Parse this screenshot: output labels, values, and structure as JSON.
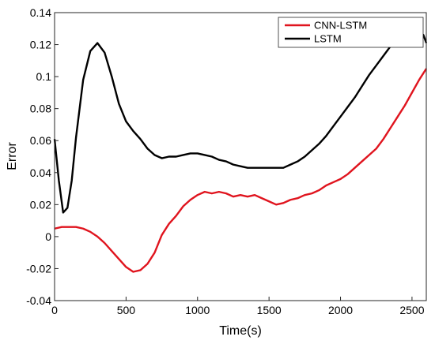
{
  "chart_data": {
    "type": "line",
    "title": "",
    "xlabel": "Time(s)",
    "ylabel": "Error",
    "xlim": [
      0,
      2600
    ],
    "ylim": [
      -0.04,
      0.14
    ],
    "xticks": [
      0,
      500,
      1000,
      1500,
      2000,
      2500
    ],
    "xtick_labels": [
      "0",
      "500",
      "1000",
      "1500",
      "2000",
      "2500"
    ],
    "yticks": [
      -0.04,
      -0.02,
      0,
      0.02,
      0.04,
      0.06,
      0.08,
      0.1,
      0.12,
      0.14
    ],
    "ytick_labels": [
      "-0.04",
      "-0.02",
      "0",
      "0.02",
      "0.04",
      "0.06",
      "0.08",
      "0.1",
      "0.12",
      "0.14"
    ],
    "grid": false,
    "legend_position": "top-right",
    "series": [
      {
        "name": "CNN-LSTM",
        "color": "#e0141e",
        "x": [
          0,
          50,
          100,
          150,
          200,
          250,
          300,
          350,
          400,
          450,
          500,
          550,
          600,
          650,
          700,
          750,
          800,
          850,
          900,
          950,
          1000,
          1050,
          1100,
          1150,
          1200,
          1250,
          1300,
          1350,
          1400,
          1450,
          1500,
          1550,
          1600,
          1650,
          1700,
          1750,
          1800,
          1850,
          1900,
          1950,
          2000,
          2050,
          2100,
          2150,
          2200,
          2250,
          2300,
          2350,
          2400,
          2450,
          2500,
          2550,
          2600
        ],
        "y": [
          0.005,
          0.006,
          0.006,
          0.006,
          0.005,
          0.003,
          0.0,
          -0.004,
          -0.009,
          -0.014,
          -0.019,
          -0.022,
          -0.021,
          -0.017,
          -0.01,
          0.001,
          0.008,
          0.013,
          0.019,
          0.023,
          0.026,
          0.028,
          0.027,
          0.028,
          0.027,
          0.025,
          0.026,
          0.025,
          0.026,
          0.024,
          0.022,
          0.02,
          0.021,
          0.023,
          0.024,
          0.026,
          0.027,
          0.029,
          0.032,
          0.034,
          0.036,
          0.039,
          0.043,
          0.047,
          0.051,
          0.055,
          0.061,
          0.068,
          0.075,
          0.082,
          0.09,
          0.098,
          0.105
        ]
      },
      {
        "name": "LSTM",
        "color": "#000000",
        "x": [
          0,
          30,
          60,
          90,
          120,
          150,
          200,
          250,
          300,
          350,
          400,
          450,
          500,
          550,
          600,
          650,
          700,
          750,
          800,
          850,
          900,
          950,
          1000,
          1050,
          1100,
          1150,
          1200,
          1250,
          1300,
          1350,
          1400,
          1450,
          1500,
          1550,
          1600,
          1650,
          1700,
          1750,
          1800,
          1850,
          1900,
          1950,
          2000,
          2050,
          2100,
          2150,
          2200,
          2250,
          2300,
          2350,
          2400,
          2450,
          2500,
          2550,
          2580,
          2600
        ],
        "y": [
          0.061,
          0.035,
          0.015,
          0.018,
          0.035,
          0.062,
          0.098,
          0.116,
          0.121,
          0.115,
          0.1,
          0.083,
          0.072,
          0.066,
          0.061,
          0.055,
          0.051,
          0.049,
          0.05,
          0.05,
          0.051,
          0.052,
          0.052,
          0.051,
          0.05,
          0.048,
          0.047,
          0.045,
          0.044,
          0.043,
          0.043,
          0.043,
          0.043,
          0.043,
          0.043,
          0.045,
          0.047,
          0.05,
          0.054,
          0.058,
          0.063,
          0.069,
          0.075,
          0.081,
          0.087,
          0.094,
          0.101,
          0.107,
          0.113,
          0.119,
          0.124,
          0.127,
          0.128,
          0.128,
          0.126,
          0.121
        ]
      }
    ]
  }
}
